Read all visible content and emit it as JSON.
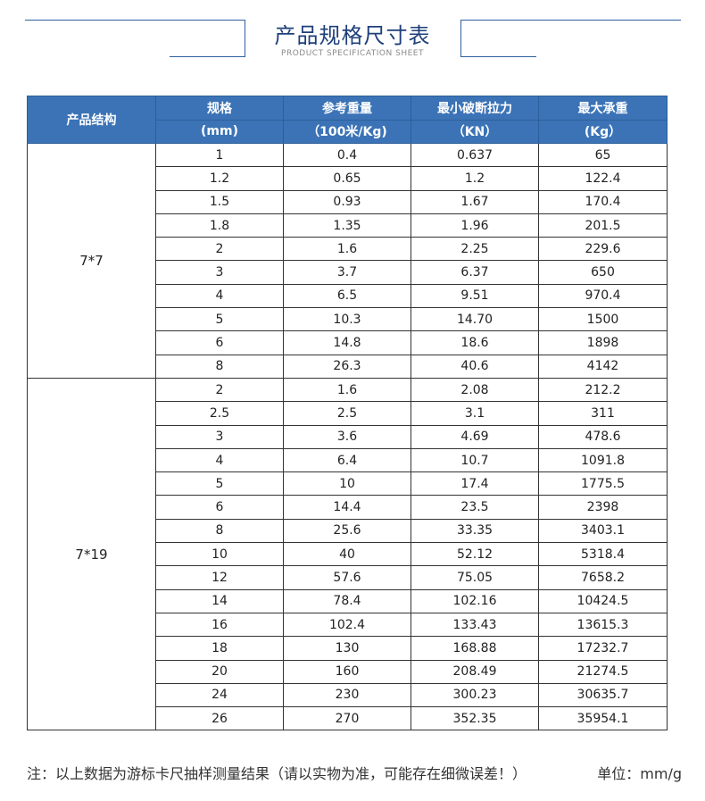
{
  "header": {
    "title": "产品规格尺寸表",
    "subtitle": "PRODUCT SPECIFICATION SHEET",
    "line_color": "#2f5fa0"
  },
  "table": {
    "headers": [
      {
        "line1": "产品结构",
        "line2": ""
      },
      {
        "line1": "规格",
        "line2": "(mm)"
      },
      {
        "line1": "参考重量",
        "line2": "（100米/Kg)"
      },
      {
        "line1": "最小破断拉力",
        "line2": "（KN）"
      },
      {
        "line1": "最大承重",
        "line2": "(Kg）"
      }
    ],
    "header_color": "#3b73b6",
    "groups": [
      {
        "structure": "7*7",
        "rows": [
          [
            "1",
            "0.4",
            "0.637",
            "65"
          ],
          [
            "1.2",
            "0.65",
            "1.2",
            "122.4"
          ],
          [
            "1.5",
            "0.93",
            "1.67",
            "170.4"
          ],
          [
            "1.8",
            "1.35",
            "1.96",
            "201.5"
          ],
          [
            "2",
            "1.6",
            "2.25",
            "229.6"
          ],
          [
            "3",
            "3.7",
            "6.37",
            "650"
          ],
          [
            "4",
            "6.5",
            "9.51",
            "970.4"
          ],
          [
            "5",
            "10.3",
            "14.70",
            "1500"
          ],
          [
            "6",
            "14.8",
            "18.6",
            "1898"
          ],
          [
            "8",
            "26.3",
            "40.6",
            "4142"
          ]
        ]
      },
      {
        "structure": "7*19",
        "rows": [
          [
            "2",
            "1.6",
            "2.08",
            "212.2"
          ],
          [
            "2.5",
            "2.5",
            "3.1",
            "311"
          ],
          [
            "3",
            "3.6",
            "4.69",
            "478.6"
          ],
          [
            "4",
            "6.4",
            "10.7",
            "1091.8"
          ],
          [
            "5",
            "10",
            "17.4",
            "1775.5"
          ],
          [
            "6",
            "14.4",
            "23.5",
            "2398"
          ],
          [
            "8",
            "25.6",
            "33.35",
            "3403.1"
          ],
          [
            "10",
            "40",
            "52.12",
            "5318.4"
          ],
          [
            "12",
            "57.6",
            "75.05",
            "7658.2"
          ],
          [
            "14",
            "78.4",
            "102.16",
            "10424.5"
          ],
          [
            "16",
            "102.4",
            "133.43",
            "13615.3"
          ],
          [
            "18",
            "130",
            "168.88",
            "17232.7"
          ],
          [
            "20",
            "160",
            "208.49",
            "21274.5"
          ],
          [
            "24",
            "230",
            "300.23",
            "30635.7"
          ],
          [
            "26",
            "270",
            "352.35",
            "35954.1"
          ]
        ]
      }
    ]
  },
  "footer": {
    "note": "注：以上数据为游标卡尺抽样测量结果（请以实物为准，可能存在细微误差！）",
    "unit": "单位：mm/g"
  }
}
